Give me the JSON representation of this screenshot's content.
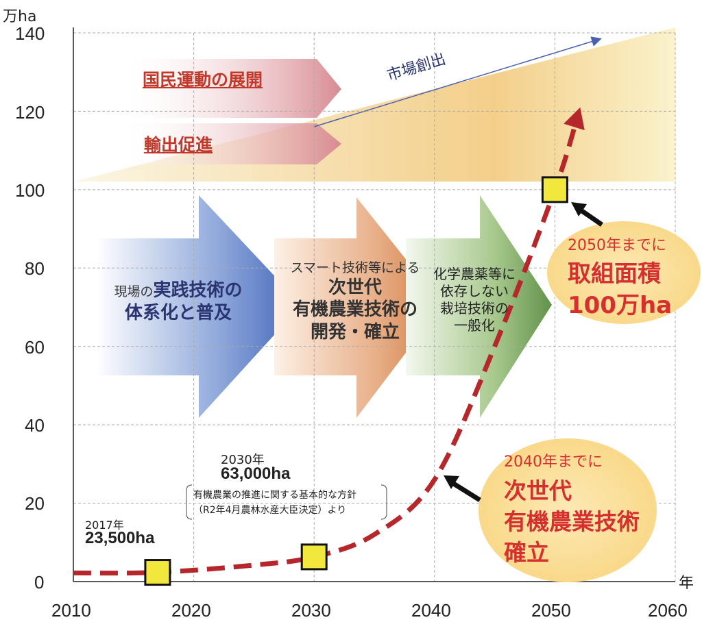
{
  "chart_data": {
    "type": "line",
    "title": "",
    "y_unit": "万ha",
    "x_unit": "年",
    "ylim": [
      0,
      140
    ],
    "xlim": [
      2010,
      2060
    ],
    "grid": true,
    "y_ticks": [
      "0",
      "20",
      "40",
      "60",
      "80",
      "100",
      "120",
      "140"
    ],
    "x_ticks": [
      "2010",
      "2020",
      "2030",
      "2040",
      "2050",
      "2060"
    ],
    "series": [
      {
        "x": [
          2010,
          2017,
          2025,
          2030,
          2035,
          2040,
          2045,
          2050,
          2052
        ],
        "y": [
          2.2,
          2.35,
          4.2,
          6.3,
          12,
          26,
          60,
          100,
          120
        ]
      }
    ],
    "markers": [
      {
        "x": 2017,
        "y": 2.35
      },
      {
        "x": 2030,
        "y": 6.3
      },
      {
        "x": 2050,
        "y": 100
      }
    ]
  },
  "banners": {
    "top": "国民運動の展開",
    "middle": "輸出促進",
    "market": "市場創出"
  },
  "arrows": {
    "a1": {
      "pre": "現場の",
      "bold1": "実践技術の",
      "bold2": "体系化と普及"
    },
    "a2": {
      "line1": "スマート技術等による",
      "line2": "次世代",
      "line3": "有機農業技術の",
      "line4": "開発・確立"
    },
    "a3": {
      "line1": "化学農薬等に",
      "line2": "依存しない",
      "line3": "栽培技術の",
      "line4": "一般化"
    }
  },
  "annotations": {
    "a2017": {
      "year": "2017年",
      "value": "23,500ha"
    },
    "a2030": {
      "year": "2030年",
      "value": "63,000ha",
      "note1": "有機農業の推進に関する基本的な方針",
      "note2": "（R2年4月農林水産大臣決定）より"
    },
    "c2040": {
      "line1": "2040年までに",
      "line2": "次世代",
      "line3": "有機農業技術",
      "line4": "確立"
    },
    "c2050": {
      "line1": "2050年までに",
      "line2": "取組面積",
      "line3": "100万ha"
    }
  },
  "colors": {
    "curve": "#b5272b",
    "marker": "#f2e73c",
    "callout": "#fbe2a0",
    "accent_red": "#d62f2f"
  }
}
